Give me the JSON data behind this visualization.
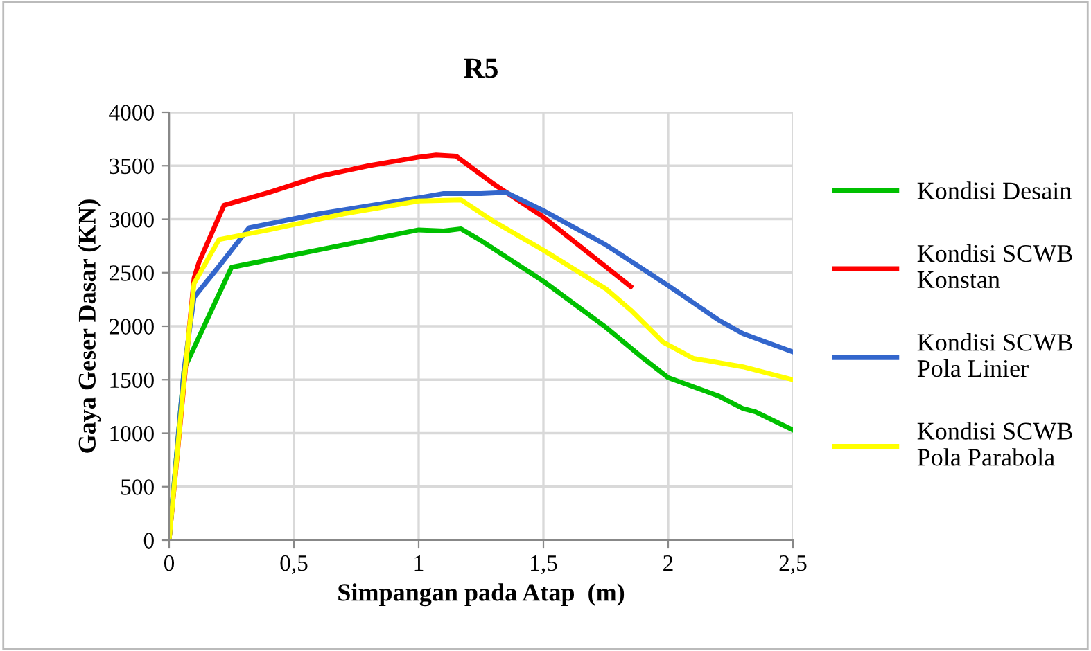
{
  "chart_data": {
    "type": "line",
    "title": "R5",
    "xlabel": "Simpangan pada Atap  (m)",
    "ylabel": "Gaya Geser Dasar (KN)",
    "xlim": [
      0,
      2.5
    ],
    "ylim": [
      0,
      4000
    ],
    "xticks": [
      0,
      {
        "value": 0.5,
        "label": "0,5"
      },
      1,
      {
        "value": 1.5,
        "label": "1,5"
      },
      2,
      {
        "value": 2.5,
        "label": "2,5"
      }
    ],
    "yticks": [
      0,
      500,
      1000,
      1500,
      2000,
      2500,
      3000,
      3500,
      4000
    ],
    "grid": true,
    "legend": "right",
    "marker": "none",
    "line_style": "solid",
    "series": [
      {
        "name": "Kondisi Desain",
        "color": "#00c000",
        "x": [
          0,
          0.06,
          0.25,
          1.0,
          1.1,
          1.17,
          1.25,
          1.5,
          1.75,
          1.9,
          2.0,
          2.2,
          2.3,
          2.35,
          2.5
        ],
        "values": [
          0,
          1600,
          2550,
          2900,
          2890,
          2910,
          2800,
          2420,
          1990,
          1700,
          1520,
          1350,
          1230,
          1200,
          1030
        ]
      },
      {
        "name": "Kondisi SCWB\nKonstan",
        "color": "#ff0000",
        "x": [
          0,
          0.1,
          0.12,
          0.22,
          0.4,
          0.6,
          0.8,
          1.0,
          1.07,
          1.15,
          1.3,
          1.5,
          1.85
        ],
        "values": [
          0,
          2450,
          2600,
          3130,
          3250,
          3400,
          3500,
          3580,
          3600,
          3590,
          3330,
          3020,
          2370
        ]
      },
      {
        "name": "Kondisi SCWB\nPola Linier",
        "color": "#3366cc",
        "x": [
          0,
          0.06,
          0.1,
          0.2,
          0.32,
          0.6,
          1.0,
          1.1,
          1.25,
          1.35,
          1.5,
          1.75,
          2.0,
          2.2,
          2.3,
          2.5
        ],
        "values": [
          0,
          1600,
          2270,
          2560,
          2920,
          3050,
          3200,
          3240,
          3240,
          3250,
          3080,
          2760,
          2380,
          2060,
          1930,
          1760
        ]
      },
      {
        "name": "Kondisi SCWB\nPola Parabola",
        "color": "#ffff00",
        "x": [
          0,
          0.06,
          0.1,
          0.2,
          0.4,
          0.7,
          1.0,
          1.17,
          1.3,
          1.5,
          1.75,
          1.85,
          1.98,
          2.1,
          2.3,
          2.5
        ],
        "values": [
          0,
          1500,
          2400,
          2810,
          2900,
          3050,
          3170,
          3180,
          2980,
          2710,
          2350,
          2150,
          1850,
          1700,
          1620,
          1500
        ]
      }
    ]
  }
}
